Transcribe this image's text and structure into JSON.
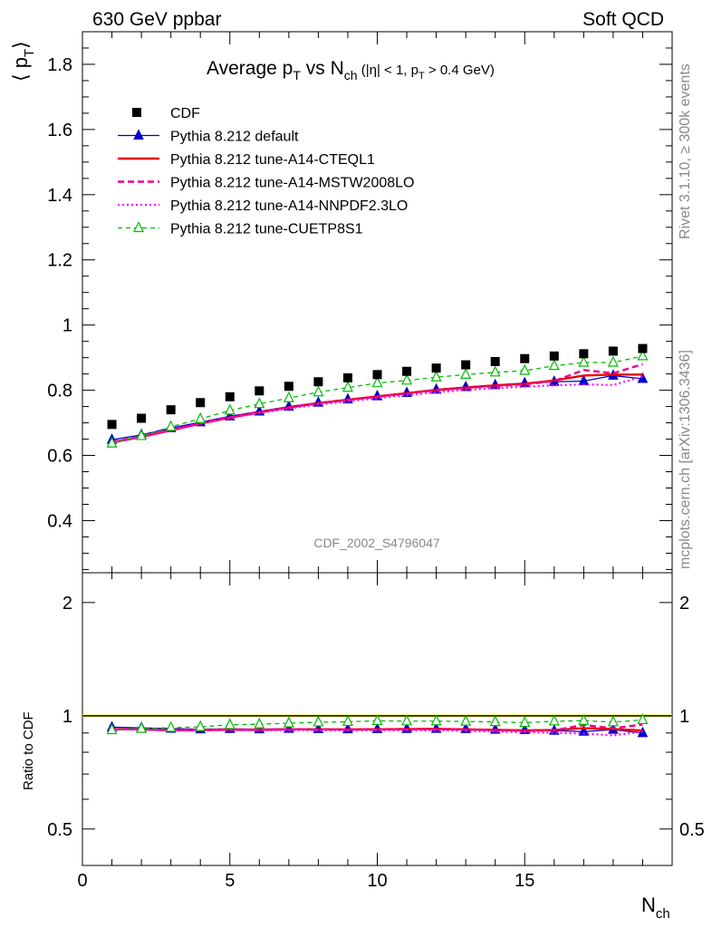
{
  "header": {
    "left": "630 GeV ppbar",
    "right": "Soft QCD"
  },
  "side": {
    "top": "Rivet 3.1.10, ≥ 300k events",
    "bottom": "mcplots.cern.ch [arXiv:1306.3436]"
  },
  "chart_data": {
    "type": "line",
    "title": {
      "main": "Average p",
      "main_sub": "T",
      "vs": " vs N",
      "vs_sub": "ch",
      "cut_open": " (|η| < 1, p",
      "cut_sub": "T",
      "cut_close": " > 0.4 GeV)"
    },
    "ylabel": {
      "open": "⟨ p",
      "sub": "T",
      "close": "⟩"
    },
    "xlabel": {
      "main": "N",
      "sub": "ch"
    },
    "ratio_ylabel": "Ratio to CDF",
    "watermark": "CDF_2002_S4796047",
    "xlim": [
      0,
      20
    ],
    "ylim": [
      0.24,
      1.9
    ],
    "ratio_ylim": [
      0.4,
      2.4
    ],
    "ratio_log": true,
    "xticks": [
      0,
      5,
      10,
      15
    ],
    "xtick_labels": [
      "0",
      "5",
      "10",
      "15"
    ],
    "yticks": [
      0.4,
      0.6,
      0.8,
      1.0,
      1.2,
      1.4,
      1.6,
      1.8
    ],
    "ytick_labels": [
      "0.4",
      "0.6",
      "0.8",
      "1",
      "1.2",
      "1.4",
      "1.6",
      "1.8"
    ],
    "ratio_yticks": [
      0.5,
      1,
      2
    ],
    "ratio_ytick_labels": [
      "0.5",
      "1",
      "2"
    ],
    "legend_position": "top-left",
    "x": [
      1,
      2,
      3,
      4,
      5,
      6,
      7,
      8,
      9,
      10,
      11,
      12,
      13,
      14,
      15,
      16,
      17,
      18,
      19
    ],
    "data": {
      "name": "CDF",
      "color": "#000000",
      "values": [
        0.695,
        0.714,
        0.74,
        0.762,
        0.78,
        0.798,
        0.812,
        0.826,
        0.838,
        0.848,
        0.858,
        0.868,
        0.878,
        0.888,
        0.897,
        0.905,
        0.912,
        0.92,
        0.928
      ]
    },
    "series": [
      {
        "name": "Pythia 8.212 default",
        "color": "#0000cc",
        "style": "solid-triangle",
        "values": [
          0.648,
          0.663,
          0.684,
          0.702,
          0.72,
          0.735,
          0.75,
          0.762,
          0.772,
          0.782,
          0.792,
          0.802,
          0.81,
          0.816,
          0.822,
          0.826,
          0.828,
          0.845,
          0.835
        ]
      },
      {
        "name": "Pythia 8.212 tune-A14-CTEQL1",
        "color": "#ee0000",
        "style": "solid-thick",
        "values": [
          0.64,
          0.657,
          0.677,
          0.698,
          0.716,
          0.732,
          0.747,
          0.76,
          0.771,
          0.781,
          0.791,
          0.801,
          0.808,
          0.815,
          0.82,
          0.83,
          0.845,
          0.848,
          0.848
        ]
      },
      {
        "name": "Pythia 8.212 tune-A14-MSTW2008LO",
        "color": "#ee0088",
        "style": "dashed",
        "values": [
          0.641,
          0.658,
          0.678,
          0.699,
          0.717,
          0.733,
          0.748,
          0.76,
          0.77,
          0.78,
          0.79,
          0.8,
          0.807,
          0.813,
          0.818,
          0.828,
          0.862,
          0.852,
          0.88
        ]
      },
      {
        "name": "Pythia 8.212 tune-A14-NNPDF2.3LO",
        "color": "#ff00ff",
        "style": "dotted",
        "values": [
          0.639,
          0.656,
          0.676,
          0.697,
          0.715,
          0.73,
          0.744,
          0.756,
          0.766,
          0.776,
          0.785,
          0.794,
          0.801,
          0.806,
          0.811,
          0.815,
          0.818,
          0.816,
          0.842
        ]
      },
      {
        "name": "Pythia 8.212 tune-CUETP8S1",
        "color": "#00bb00",
        "style": "dashed-open-triangle",
        "values": [
          0.637,
          0.66,
          0.688,
          0.712,
          0.738,
          0.758,
          0.776,
          0.794,
          0.808,
          0.822,
          0.83,
          0.84,
          0.848,
          0.855,
          0.86,
          0.875,
          0.885,
          0.885,
          0.905
        ]
      }
    ]
  }
}
